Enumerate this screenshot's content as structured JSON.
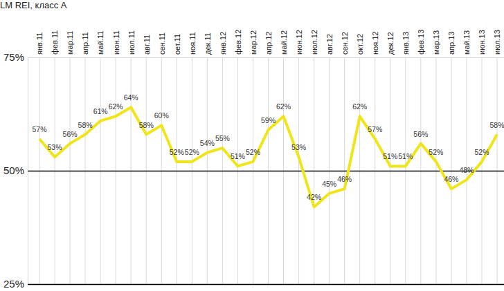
{
  "chart_data": {
    "type": "line",
    "title": "LM REI, класс А",
    "categories": [
      "янв.11",
      "фев.11",
      "мар.11",
      "апр.11",
      "май.11",
      "июн.11",
      "июл.11",
      "авг.11",
      "сен.11",
      "оет.11",
      "ноя.11",
      "дек.11",
      "янв.12",
      "фев.12",
      "мар.12",
      "апр.12",
      "май.12",
      "июн.12",
      "июл.12",
      "авг.12",
      "сен.12",
      "окт.12",
      "ноя.12",
      "дек.12",
      "янв.13",
      "фев.13",
      "мар.13",
      "апр.13",
      "май.13",
      "июн.13",
      "июл.13"
    ],
    "values": [
      57,
      53,
      56,
      58,
      61,
      62,
      64,
      58,
      60,
      52,
      52,
      54,
      55,
      51,
      52,
      59,
      62,
      53,
      42,
      45,
      46,
      62,
      57,
      51,
      51,
      56,
      52,
      46,
      48,
      52,
      58
    ],
    "value_labels": [
      "57%",
      "53%",
      "56%",
      "58%",
      "61%",
      "62%",
      "64%",
      "58%",
      "60%",
      "52%",
      "52%",
      "54%",
      "55%",
      "51%",
      "52%",
      "59%",
      "62%",
      "53%",
      "42%",
      "45%",
      "46%",
      "62%",
      "57%",
      "51%",
      "51%",
      "56%",
      "52%",
      "46%",
      "48%",
      "52%",
      "58%"
    ],
    "color": "#efe51a",
    "ylim": [
      25,
      75
    ],
    "yticks": [
      {
        "value": 25,
        "label": "25%"
      },
      {
        "value": 50,
        "label": "50%"
      },
      {
        "value": 75,
        "label": "75%"
      }
    ],
    "grid": true,
    "data_labels": true
  }
}
